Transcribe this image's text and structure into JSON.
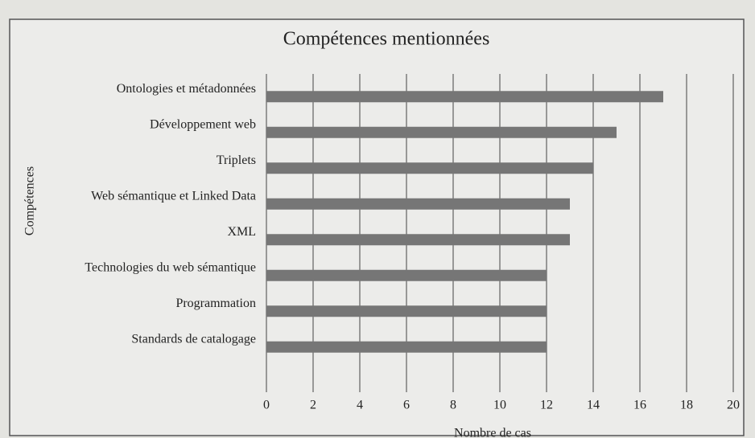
{
  "chart_data": {
    "type": "hbar",
    "title": "Compétences mentionnées",
    "categories": [
      "Ontologies et métadonnées",
      "Développement web",
      "Triplets",
      "Web sémantique et Linked Data",
      "XML",
      "Technologies du web sémantique",
      "Programmation",
      "Standards de catalogage"
    ],
    "values": [
      17,
      15,
      14,
      13,
      13,
      12,
      12,
      12
    ],
    "color": "#767676",
    "xlabel": "Nombre de cas",
    "ylabel": "Compétences",
    "xlim": [
      0,
      20
    ],
    "xticks": [
      0,
      2,
      4,
      6,
      8,
      10,
      12,
      14,
      16,
      18,
      20
    ],
    "grid": true
  }
}
